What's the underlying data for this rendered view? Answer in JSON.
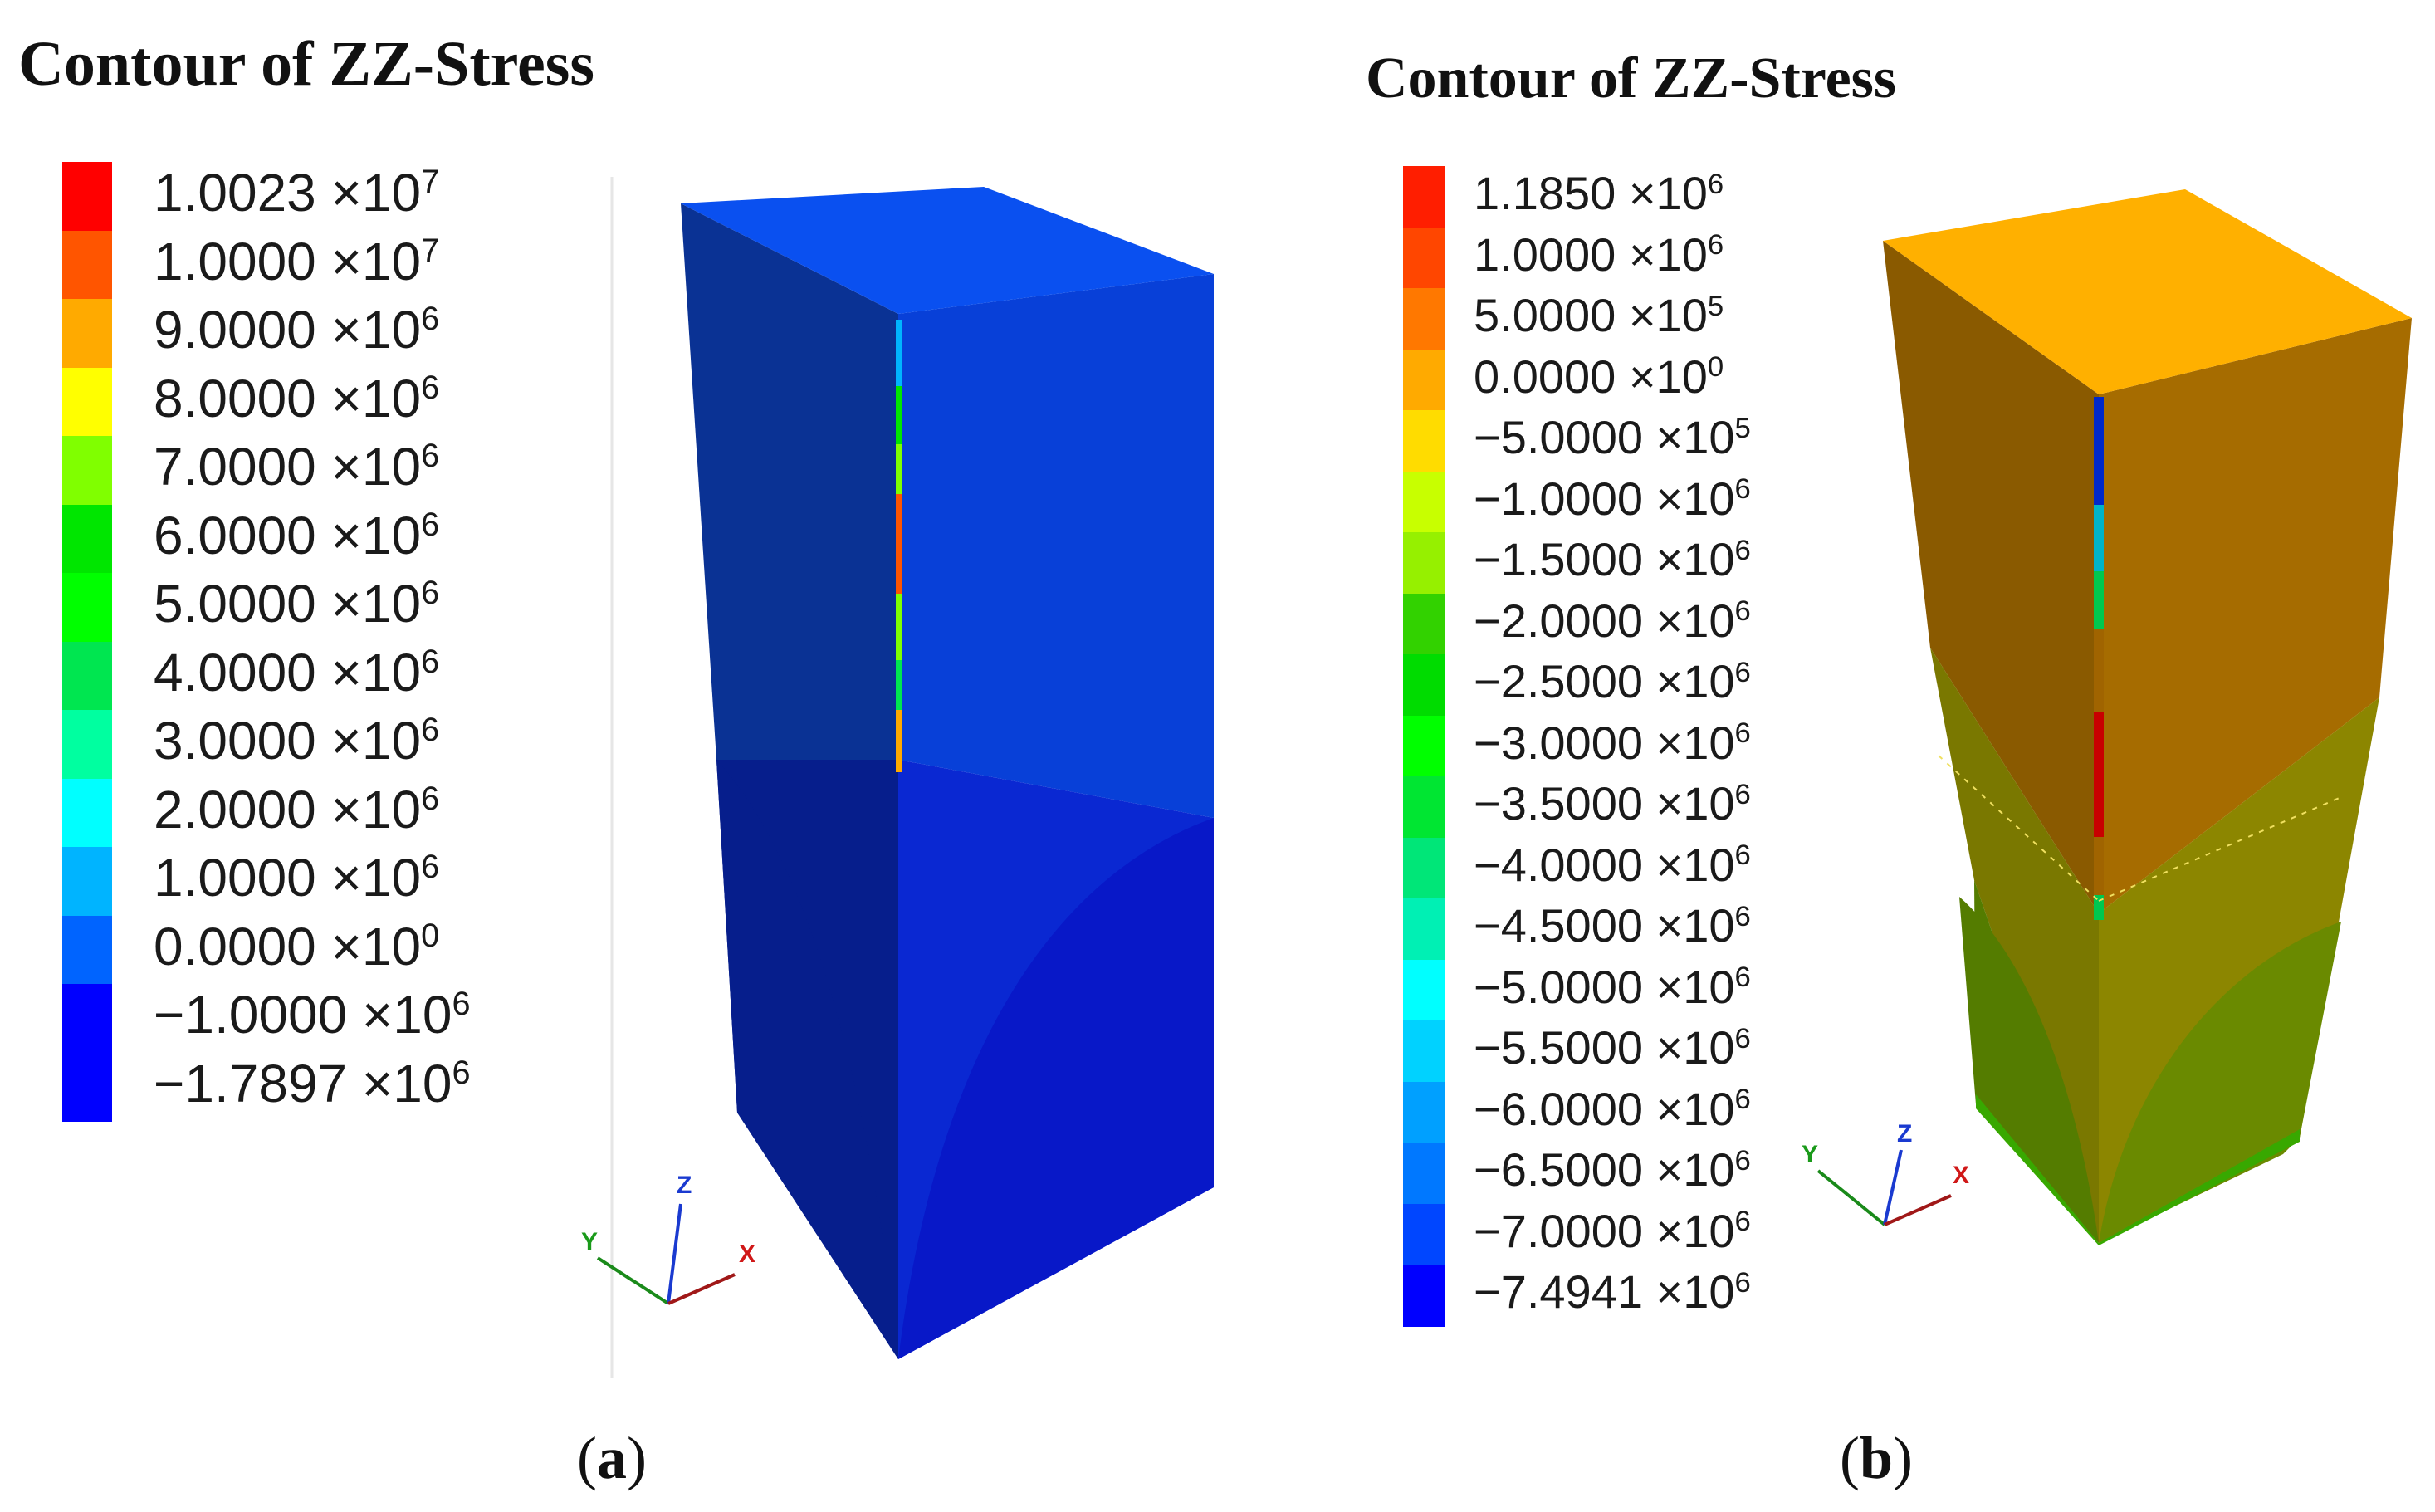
{
  "panel_a": {
    "title": "Contour of ZZ-Stress",
    "legend": [
      {
        "mantissa": "1.0023",
        "exp": "7",
        "color": "#ff0000"
      },
      {
        "mantissa": "1.0000",
        "exp": "7",
        "color": "#ff5500"
      },
      {
        "mantissa": "9.0000",
        "exp": "6",
        "color": "#ffaa00"
      },
      {
        "mantissa": "8.0000",
        "exp": "6",
        "color": "#ffff00"
      },
      {
        "mantissa": "7.0000",
        "exp": "6",
        "color": "#80ff00"
      },
      {
        "mantissa": "6.0000",
        "exp": "6",
        "color": "#00e600"
      },
      {
        "mantissa": "5.0000",
        "exp": "6",
        "color": "#00ff00"
      },
      {
        "mantissa": "4.0000",
        "exp": "6",
        "color": "#00e650"
      },
      {
        "mantissa": "3.0000",
        "exp": "6",
        "color": "#00ffa0"
      },
      {
        "mantissa": "2.0000",
        "exp": "6",
        "color": "#00ffff"
      },
      {
        "mantissa": "1.0000",
        "exp": "6",
        "color": "#00b4ff"
      },
      {
        "mantissa": "0.0000",
        "exp": "0",
        "color": "#0064ff"
      },
      {
        "mantissa": "−1.0000",
        "exp": "6",
        "color": "#0000ff"
      },
      {
        "mantissa": "−1.7897",
        "exp": "6",
        "color": "#0000ff"
      }
    ],
    "caption_letter": "a",
    "axes": {
      "x": "X",
      "y": "Y",
      "z": "Z"
    },
    "colors": {
      "top": "#0a50f0",
      "left_upper": "#0a3294",
      "right_upper": "#0840d8",
      "left_lower": "#061e8c",
      "right_lower": "#0a28d2",
      "right_bulge": "#0818c8"
    }
  },
  "panel_b": {
    "title": "Contour of ZZ-Stress",
    "legend": [
      {
        "mantissa": "1.1850",
        "exp": "6",
        "color": "#ff1e00"
      },
      {
        "mantissa": "1.0000",
        "exp": "6",
        "color": "#ff4600"
      },
      {
        "mantissa": "5.0000",
        "exp": "5",
        "color": "#ff7800"
      },
      {
        "mantissa": "0.0000",
        "exp": "0",
        "color": "#ffaa00"
      },
      {
        "mantissa": "−5.0000",
        "exp": "5",
        "color": "#ffdc00"
      },
      {
        "mantissa": "−1.0000",
        "exp": "6",
        "color": "#c8ff00"
      },
      {
        "mantissa": "−1.5000",
        "exp": "6",
        "color": "#96f000"
      },
      {
        "mantissa": "−2.0000",
        "exp": "6",
        "color": "#32d200"
      },
      {
        "mantissa": "−2.5000",
        "exp": "6",
        "color": "#00dc00"
      },
      {
        "mantissa": "−3.0000",
        "exp": "6",
        "color": "#00ff00"
      },
      {
        "mantissa": "−3.5000",
        "exp": "6",
        "color": "#00e632"
      },
      {
        "mantissa": "−4.0000",
        "exp": "6",
        "color": "#00e678"
      },
      {
        "mantissa": "−4.5000",
        "exp": "6",
        "color": "#00f0b4"
      },
      {
        "mantissa": "−5.0000",
        "exp": "6",
        "color": "#00ffff"
      },
      {
        "mantissa": "−5.5000",
        "exp": "6",
        "color": "#00d2ff"
      },
      {
        "mantissa": "−6.0000",
        "exp": "6",
        "color": "#00a0ff"
      },
      {
        "mantissa": "−6.5000",
        "exp": "6",
        "color": "#0078ff"
      },
      {
        "mantissa": "−7.0000",
        "exp": "6",
        "color": "#0046ff"
      },
      {
        "mantissa": "−7.4941",
        "exp": "6",
        "color": "#0000ff"
      }
    ],
    "caption_letter": "b",
    "axes": {
      "x": "X",
      "y": "Y",
      "z": "Z"
    },
    "colors": {
      "top": "#ffb000",
      "left_upper": "#8a5a00",
      "right_upper": "#a66c00",
      "left_mid": "#7a7800",
      "right_mid": "#8c8600",
      "left_lower": "#547c00",
      "right_lower": "#6a8a00",
      "bottom_edge": "#38a800",
      "crack_top": "#0028c8",
      "crack_mid": "#00c850",
      "crack_red": "#c80000"
    }
  },
  "multiply_sign": "×",
  "base": "10"
}
